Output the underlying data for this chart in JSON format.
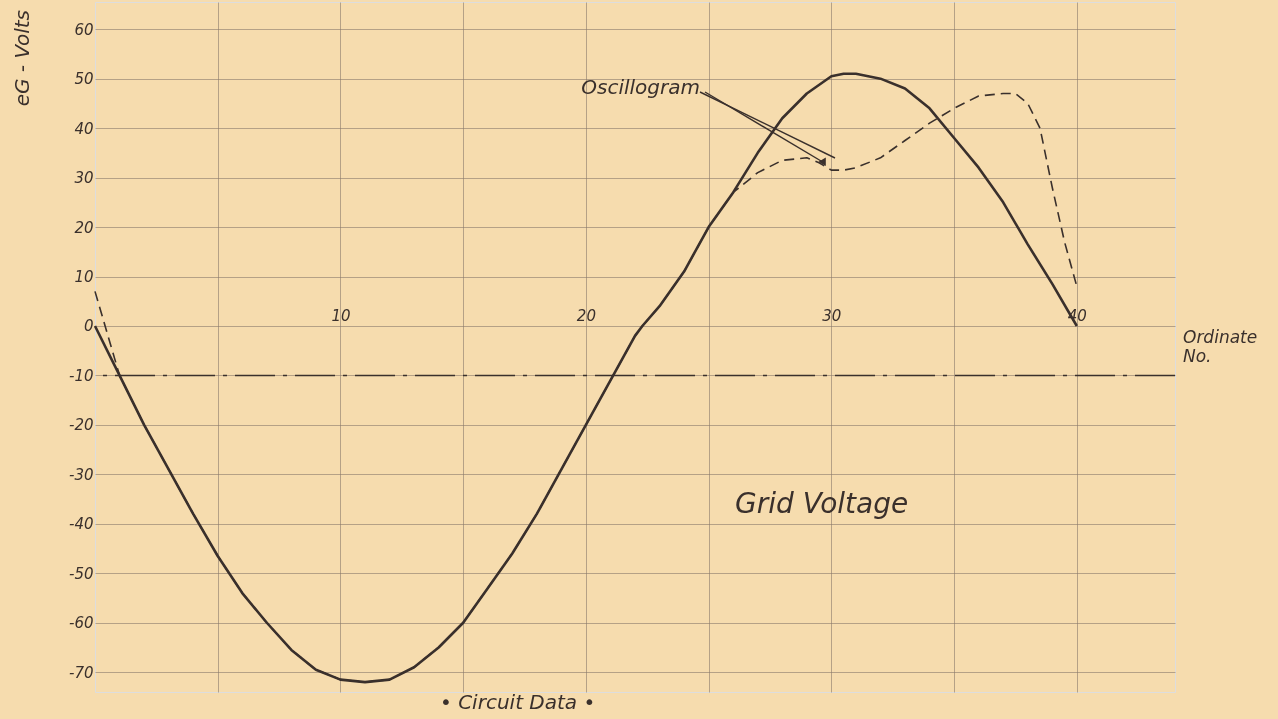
{
  "chart_data": {
    "type": "line",
    "xlabel": "Ordinate No.",
    "ylabel": "eG - Volts",
    "xlim": [
      0,
      44
    ],
    "ylim": [
      -74,
      65.5
    ],
    "xticks": [
      {
        "value": 5,
        "label": null
      },
      10,
      {
        "value": 15,
        "label": null
      },
      20,
      {
        "value": 25,
        "label": null
      },
      30,
      {
        "value": 35,
        "label": null
      },
      40
    ],
    "yticks": [
      -70,
      -60,
      -50,
      -40,
      -30,
      -20,
      -10,
      0,
      10,
      20,
      30,
      40,
      50,
      60
    ],
    "grid": true,
    "marker": "none",
    "series": [
      {
        "color": "#3a302c",
        "line_style": "solid",
        "x": [
          0,
          1,
          2,
          3,
          4,
          5,
          6,
          7,
          8,
          9,
          10,
          11,
          12,
          13,
          14,
          15,
          16,
          17,
          18,
          19,
          20,
          21,
          22,
          22.3,
          23,
          24,
          25,
          26,
          27,
          28,
          29,
          30,
          30.5,
          31,
          32,
          33,
          34,
          35,
          36,
          37,
          38,
          39,
          40
        ],
        "values": [
          0,
          -10,
          -20,
          -29,
          -38,
          -46.5,
          -54,
          -60,
          -65.5,
          -69.5,
          -71.5,
          -72,
          -71.5,
          -69,
          -65,
          -60,
          -53,
          -46,
          -38,
          -29,
          -20,
          -11,
          -2,
          0,
          4,
          11,
          20,
          27,
          35,
          42,
          47,
          50.5,
          51,
          51,
          50,
          48,
          44,
          38,
          32,
          25,
          16.5,
          8.5,
          0
        ]
      },
      {
        "color": "#3a302c",
        "line_style": "dashed",
        "x": [
          0,
          1,
          2,
          3,
          4,
          5,
          6,
          7,
          8,
          9,
          10,
          11,
          12,
          13,
          14,
          15,
          16,
          17,
          18,
          19,
          20,
          21,
          22,
          22.3,
          23,
          24,
          25,
          26,
          27,
          28,
          29,
          29.5,
          30,
          30.5,
          31,
          32,
          33,
          34,
          35,
          36,
          37,
          37.5,
          38,
          38.5,
          39,
          39.5,
          40
        ],
        "values": [
          7,
          -10,
          -20,
          -29,
          -38,
          -46.5,
          -54,
          -60,
          -65.5,
          -69.5,
          -71.5,
          -72,
          -71.5,
          -69,
          -65,
          -60,
          -53,
          -46,
          -38,
          -29,
          -20,
          -11,
          -2,
          0,
          4,
          11,
          20,
          27,
          31,
          33.5,
          34,
          33,
          31.5,
          31.5,
          32,
          34,
          37.5,
          41,
          44,
          46.5,
          47,
          47,
          45,
          40,
          28,
          17,
          8
        ]
      }
    ],
    "ref_lines": [
      {
        "axis": "y",
        "value": -10,
        "color": "#3a302c",
        "line_style": "dashdot"
      }
    ],
    "annotations": [
      {
        "text": "Oscillogram",
        "x": 29.7,
        "y": 33
      },
      "Grid Voltage",
      "• Circuit Data •"
    ]
  }
}
